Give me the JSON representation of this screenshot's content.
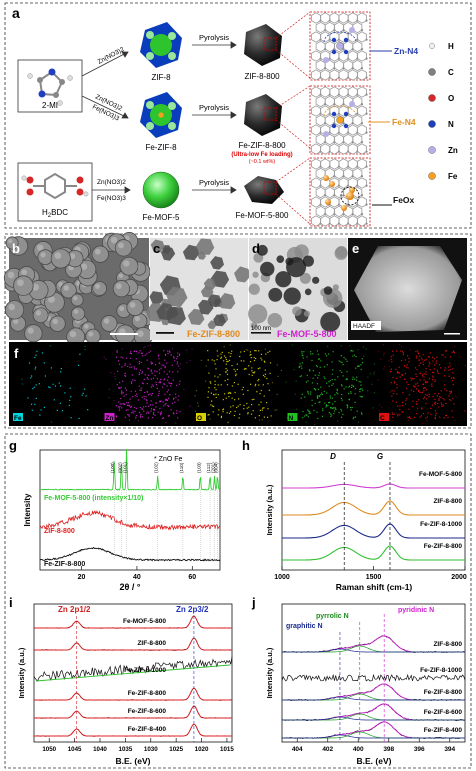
{
  "panel_a": {
    "label": "a",
    "precursors": [
      {
        "label": "2-MI"
      },
      {
        "label": "H2BDC",
        "main": "H",
        "sub": "2",
        "rest": "BDC"
      }
    ],
    "arrow_labels": [
      "Zn(NO3)2",
      "Zn(NO3)2",
      "Fe(NO3)3",
      "Zn(NO3)2",
      "Fe(NO3)3"
    ],
    "mofs": [
      "ZIF-8",
      "Fe-ZIF-8",
      "Fe-MOF-5"
    ],
    "pyrolysis": "Pyrolysis",
    "products": [
      "ZIF-8-800",
      "Fe-ZIF-8-800",
      "Fe-MOF-5-800"
    ],
    "note1": "(Ultra-low Fe loading)",
    "note2": "(~0.1 wt%)",
    "sites": [
      "Zn-N4",
      "Fe-N4",
      "FeOx"
    ],
    "legend": [
      {
        "label": "H",
        "color": "#f2f2f2"
      },
      {
        "label": "C",
        "color": "#7f7f7f"
      },
      {
        "label": "O",
        "color": "#d62728"
      },
      {
        "label": "N",
        "color": "#1f3fbf"
      },
      {
        "label": "Zn",
        "color": "#b6b0e8"
      },
      {
        "label": "Fe",
        "color": "#f5a020"
      }
    ]
  },
  "panel_b": {
    "label": "b"
  },
  "panel_c": {
    "label": "c",
    "name": "Fe-ZIF-8-800"
  },
  "panel_d": {
    "label": "d",
    "name": "Fe-MOF-5-800",
    "scale": "100 nm"
  },
  "panel_e": {
    "label": "e",
    "haadf": "HAADF"
  },
  "panel_f": {
    "label": "f",
    "maps": [
      {
        "element": "Fe",
        "color": "#00d8e0"
      },
      {
        "element": "Zn",
        "color": "#d020d0"
      },
      {
        "element": "O",
        "color": "#d8d000"
      },
      {
        "element": "N",
        "color": "#20c020"
      },
      {
        "element": "C",
        "color": "#e01010"
      }
    ]
  },
  "panel_g": {
    "label": "g",
    "xlabel": "2θ / °",
    "ylabel": "Intensity",
    "legend": "ZnO  Fe",
    "ticks_x": [
      "20",
      "40",
      "60"
    ],
    "curves": [
      {
        "name": "Fe-MOF-5-800 (intensity×1/10)",
        "color": "#33cc33"
      },
      {
        "name": "ZIF-8-800",
        "color": "#e02020"
      },
      {
        "name": "Fe-ZIF-8-800",
        "color": "#111111"
      }
    ],
    "peak_labels": [
      "(100)",
      "(002)",
      "(101)",
      "(102)",
      "(110)",
      "(103)",
      "(112)",
      "(201)",
      "(004)"
    ]
  },
  "panel_h": {
    "label": "h",
    "xlabel": "Raman shift (cm-1)",
    "ylabel": "Intensity (a.u.)",
    "d_label": "D",
    "g_label": "G",
    "ticks_x": [
      "1000",
      "1500",
      "2000"
    ],
    "curves": [
      {
        "name": "Fe-MOF-5-800",
        "color": "#d040d0"
      },
      {
        "name": "ZIF-8-800",
        "color": "#e08a20"
      },
      {
        "name": "Fe-ZIF-8-1000",
        "color": "#1a2a8a"
      },
      {
        "name": "Fe-ZIF-8-800",
        "color": "#30c030"
      }
    ]
  },
  "panel_i": {
    "label": "i",
    "xlabel": "B.E. (eV)",
    "ylabel": "Intensity (a.u.)",
    "peak1": "Zn 2p1/2",
    "peak2": "Zn 2p3/2",
    "ticks_x": [
      "1050",
      "1045",
      "1040",
      "1035",
      "1030",
      "1025",
      "1020",
      "1015"
    ],
    "curves": [
      "Fe-MOF-5-800",
      "ZIF-8-800",
      "Fe-ZIF-8-1000",
      "Fe-ZIF-8-800",
      "Fe-ZIF-8-600",
      "Fe-ZIF-8-400"
    ]
  },
  "panel_j": {
    "label": "j",
    "xlabel": "B.E. (eV)",
    "ylabel": "Intensity (a.u.)",
    "graphitic": "graphitic N",
    "pyrrolic": "pyrrolic N",
    "pyridinic": "pyridinic N",
    "ticks_x": [
      "404",
      "402",
      "400",
      "398",
      "396",
      "394"
    ],
    "curves": [
      "ZIF-8-800",
      "Fe-ZIF-8-1000",
      "Fe-ZIF-8-800",
      "Fe-ZIF-8-600",
      "Fe-ZIF-8-400"
    ]
  }
}
